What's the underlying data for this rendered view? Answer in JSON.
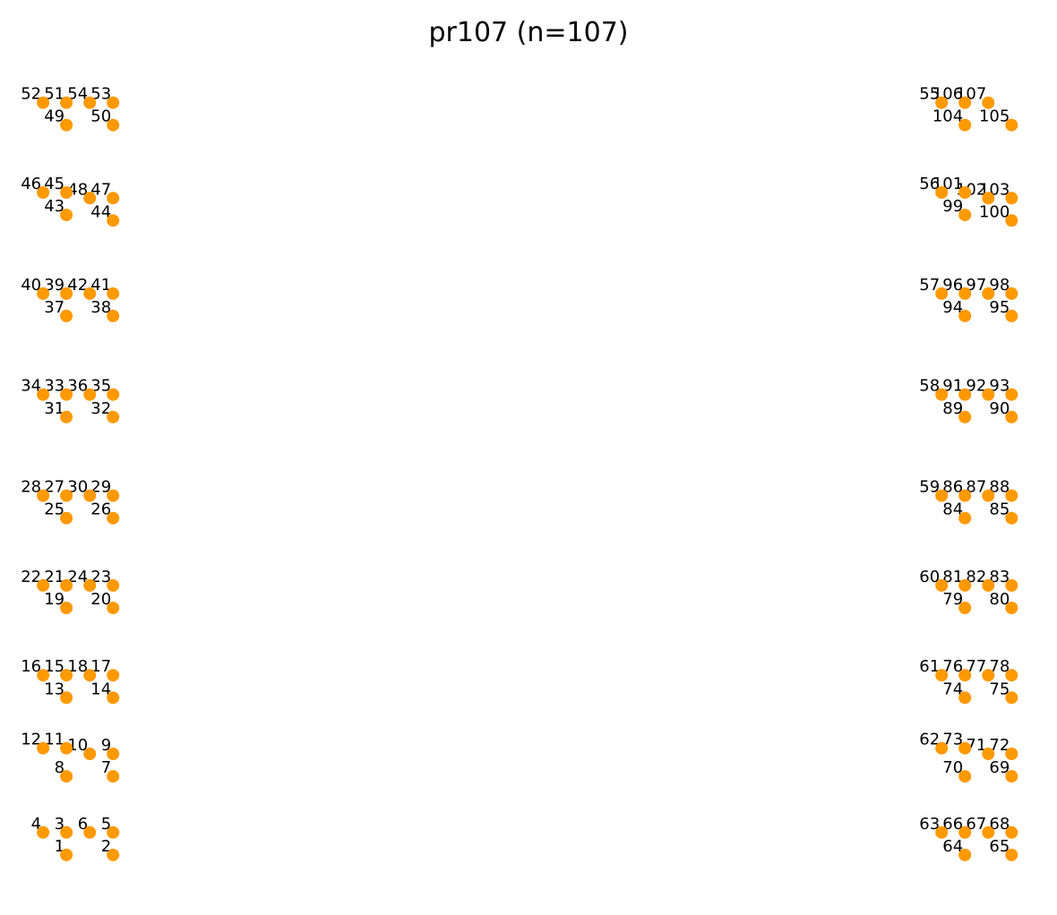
{
  "chart_data": {
    "type": "scatter",
    "title": "pr107  (n=107)",
    "marker_color": "#ff9900",
    "label_color": "#000000",
    "grid": false,
    "axes_visible": false,
    "xlim": [
      -1.0,
      42.6
    ],
    "ylim": [
      -1.8,
      35.6
    ],
    "points": [
      {
        "id": "1",
        "x": 1,
        "y": 0
      },
      {
        "id": "2",
        "x": 3,
        "y": 0
      },
      {
        "id": "3",
        "x": 1,
        "y": 1
      },
      {
        "id": "4",
        "x": 0,
        "y": 1
      },
      {
        "id": "5",
        "x": 3,
        "y": 1
      },
      {
        "id": "6",
        "x": 2,
        "y": 1
      },
      {
        "id": "7",
        "x": 3,
        "y": 3.5
      },
      {
        "id": "8",
        "x": 1,
        "y": 3.5
      },
      {
        "id": "9",
        "x": 3,
        "y": 4.5
      },
      {
        "id": "10",
        "x": 2,
        "y": 4.5
      },
      {
        "id": "11",
        "x": 1,
        "y": 4.75
      },
      {
        "id": "12",
        "x": 0,
        "y": 4.75
      },
      {
        "id": "13",
        "x": 1,
        "y": 7
      },
      {
        "id": "14",
        "x": 3,
        "y": 7
      },
      {
        "id": "15",
        "x": 1,
        "y": 8
      },
      {
        "id": "16",
        "x": 0,
        "y": 8
      },
      {
        "id": "17",
        "x": 3,
        "y": 8
      },
      {
        "id": "18",
        "x": 2,
        "y": 8
      },
      {
        "id": "19",
        "x": 1,
        "y": 11
      },
      {
        "id": "20",
        "x": 3,
        "y": 11
      },
      {
        "id": "21",
        "x": 1,
        "y": 12
      },
      {
        "id": "22",
        "x": 0,
        "y": 12
      },
      {
        "id": "23",
        "x": 3,
        "y": 12
      },
      {
        "id": "24",
        "x": 2,
        "y": 12
      },
      {
        "id": "25",
        "x": 1,
        "y": 15
      },
      {
        "id": "26",
        "x": 3,
        "y": 15
      },
      {
        "id": "27",
        "x": 1,
        "y": 16
      },
      {
        "id": "28",
        "x": 0,
        "y": 16
      },
      {
        "id": "29",
        "x": 3,
        "y": 16
      },
      {
        "id": "30",
        "x": 2,
        "y": 16
      },
      {
        "id": "31",
        "x": 1,
        "y": 19.5
      },
      {
        "id": "32",
        "x": 3,
        "y": 19.5
      },
      {
        "id": "33",
        "x": 1,
        "y": 20.5
      },
      {
        "id": "34",
        "x": 0,
        "y": 20.5
      },
      {
        "id": "35",
        "x": 3,
        "y": 20.5
      },
      {
        "id": "36",
        "x": 2,
        "y": 20.5
      },
      {
        "id": "37",
        "x": 1,
        "y": 24
      },
      {
        "id": "38",
        "x": 3,
        "y": 24
      },
      {
        "id": "39",
        "x": 1,
        "y": 25
      },
      {
        "id": "40",
        "x": 0,
        "y": 25
      },
      {
        "id": "41",
        "x": 3,
        "y": 25
      },
      {
        "id": "42",
        "x": 2,
        "y": 25
      },
      {
        "id": "43",
        "x": 1,
        "y": 28.5
      },
      {
        "id": "44",
        "x": 3,
        "y": 28.25
      },
      {
        "id": "45",
        "x": 1,
        "y": 29.5
      },
      {
        "id": "46",
        "x": 0,
        "y": 29.5
      },
      {
        "id": "47",
        "x": 3,
        "y": 29.25
      },
      {
        "id": "48",
        "x": 2,
        "y": 29.25
      },
      {
        "id": "49",
        "x": 1,
        "y": 32.5
      },
      {
        "id": "50",
        "x": 3,
        "y": 32.5
      },
      {
        "id": "51",
        "x": 1,
        "y": 33.5
      },
      {
        "id": "52",
        "x": 0,
        "y": 33.5
      },
      {
        "id": "53",
        "x": 3,
        "y": 33.5
      },
      {
        "id": "54",
        "x": 2,
        "y": 33.5
      },
      {
        "id": "55",
        "x": 38.5,
        "y": 33.5
      },
      {
        "id": "56",
        "x": 38.5,
        "y": 29.5
      },
      {
        "id": "57",
        "x": 38.5,
        "y": 25
      },
      {
        "id": "58",
        "x": 38.5,
        "y": 20.5
      },
      {
        "id": "59",
        "x": 38.5,
        "y": 16
      },
      {
        "id": "60",
        "x": 38.5,
        "y": 12
      },
      {
        "id": "61",
        "x": 38.5,
        "y": 8
      },
      {
        "id": "62",
        "x": 38.5,
        "y": 4.75
      },
      {
        "id": "63",
        "x": 38.5,
        "y": 1
      },
      {
        "id": "64",
        "x": 39.5,
        "y": 0
      },
      {
        "id": "65",
        "x": 41.5,
        "y": 0
      },
      {
        "id": "66",
        "x": 39.5,
        "y": 1
      },
      {
        "id": "67",
        "x": 40.5,
        "y": 1
      },
      {
        "id": "68",
        "x": 41.5,
        "y": 1
      },
      {
        "id": "69",
        "x": 41.5,
        "y": 3.5
      },
      {
        "id": "70",
        "x": 39.5,
        "y": 3.5
      },
      {
        "id": "71",
        "x": 40.5,
        "y": 4.5
      },
      {
        "id": "72",
        "x": 41.5,
        "y": 4.5
      },
      {
        "id": "73",
        "x": 39.5,
        "y": 4.75
      },
      {
        "id": "74",
        "x": 39.5,
        "y": 7
      },
      {
        "id": "75",
        "x": 41.5,
        "y": 7
      },
      {
        "id": "76",
        "x": 39.5,
        "y": 8
      },
      {
        "id": "77",
        "x": 40.5,
        "y": 8
      },
      {
        "id": "78",
        "x": 41.5,
        "y": 8
      },
      {
        "id": "79",
        "x": 39.5,
        "y": 11
      },
      {
        "id": "80",
        "x": 41.5,
        "y": 11
      },
      {
        "id": "81",
        "x": 39.5,
        "y": 12
      },
      {
        "id": "82",
        "x": 40.5,
        "y": 12
      },
      {
        "id": "83",
        "x": 41.5,
        "y": 12
      },
      {
        "id": "84",
        "x": 39.5,
        "y": 15
      },
      {
        "id": "85",
        "x": 41.5,
        "y": 15
      },
      {
        "id": "86",
        "x": 39.5,
        "y": 16
      },
      {
        "id": "87",
        "x": 40.5,
        "y": 16
      },
      {
        "id": "88",
        "x": 41.5,
        "y": 16
      },
      {
        "id": "89",
        "x": 39.5,
        "y": 19.5
      },
      {
        "id": "90",
        "x": 41.5,
        "y": 19.5
      },
      {
        "id": "91",
        "x": 39.5,
        "y": 20.5
      },
      {
        "id": "92",
        "x": 40.5,
        "y": 20.5
      },
      {
        "id": "93",
        "x": 41.5,
        "y": 20.5
      },
      {
        "id": "94",
        "x": 39.5,
        "y": 24
      },
      {
        "id": "95",
        "x": 41.5,
        "y": 24
      },
      {
        "id": "96",
        "x": 39.5,
        "y": 25
      },
      {
        "id": "97",
        "x": 40.5,
        "y": 25
      },
      {
        "id": "98",
        "x": 41.5,
        "y": 25
      },
      {
        "id": "99",
        "x": 39.5,
        "y": 28.5
      },
      {
        "id": "100",
        "x": 41.5,
        "y": 28.25
      },
      {
        "id": "101",
        "x": 39.5,
        "y": 29.5
      },
      {
        "id": "102",
        "x": 40.5,
        "y": 29.25
      },
      {
        "id": "103",
        "x": 41.5,
        "y": 29.25
      },
      {
        "id": "104",
        "x": 39.5,
        "y": 32.5
      },
      {
        "id": "105",
        "x": 41.5,
        "y": 32.5
      },
      {
        "id": "106",
        "x": 39.5,
        "y": 33.5
      },
      {
        "id": "107",
        "x": 40.5,
        "y": 33.5
      }
    ]
  }
}
